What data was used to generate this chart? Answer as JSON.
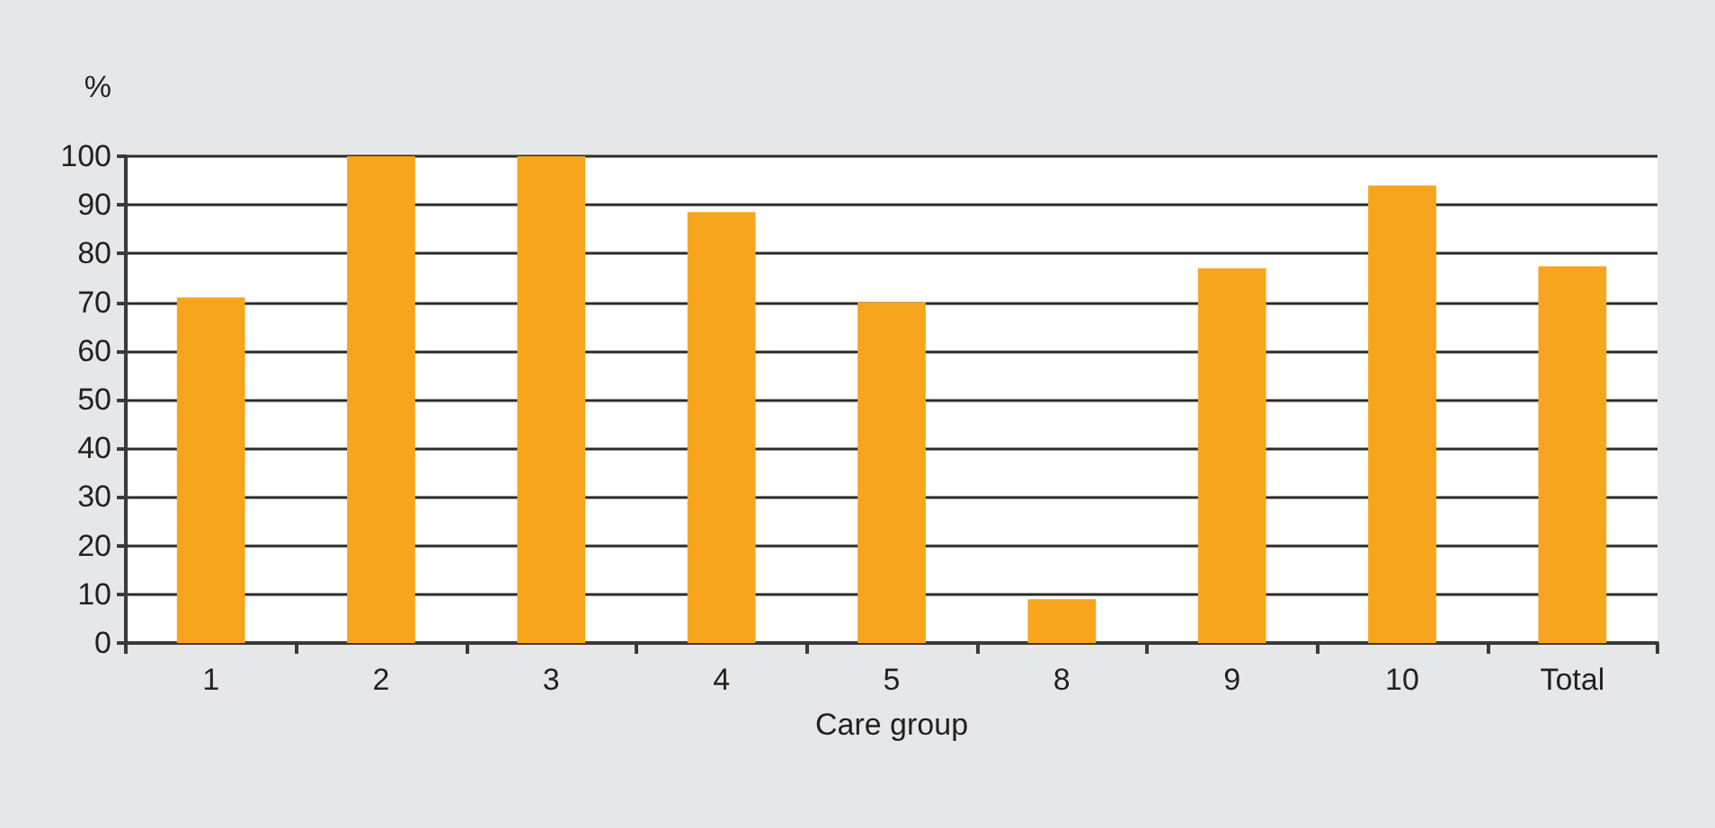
{
  "chart_data": {
    "type": "bar",
    "ylabel": "%",
    "xlabel": "Care group",
    "categories": [
      "1",
      "2",
      "3",
      "4",
      "5",
      "8",
      "9",
      "10",
      "Total"
    ],
    "values": [
      71,
      100,
      100,
      88.5,
      70,
      9,
      77,
      94,
      77.4
    ],
    "color": "#f7a51d",
    "ylim": [
      0,
      100
    ],
    "yticks": [
      0,
      10,
      20,
      30,
      40,
      50,
      60,
      70,
      80,
      90,
      100
    ],
    "grid": "y"
  }
}
